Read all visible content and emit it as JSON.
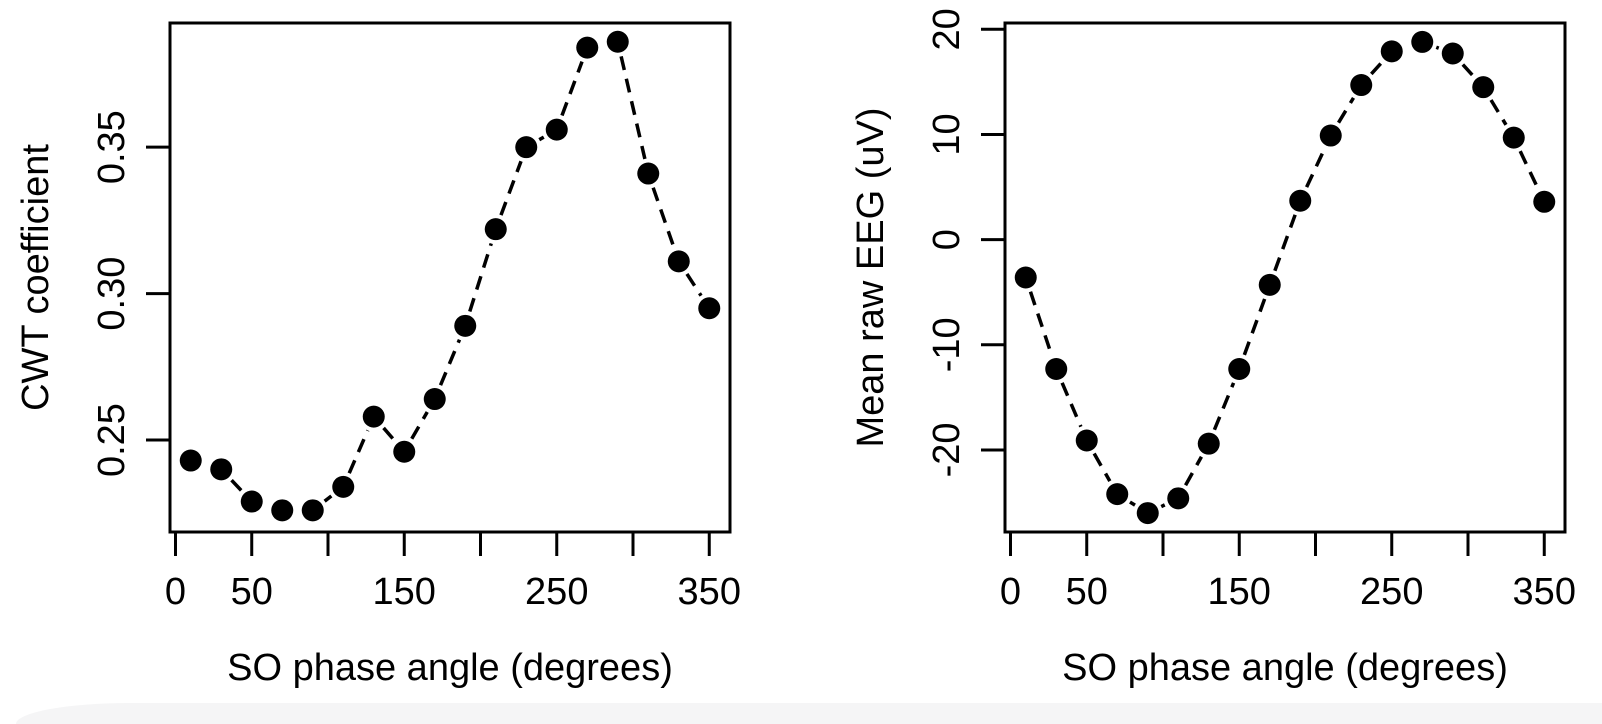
{
  "page": {
    "background_color": "#ffffff",
    "foreground_color": "#000000",
    "bottom_bar_color": "#f5f5f6"
  },
  "chart_data": [
    {
      "type": "scatter",
      "subtype": "points-with-dashed-connecting-lines (R type='b', lty=2, pch=19)",
      "title": "",
      "xlabel": "SO phase angle (degrees)",
      "ylabel": "CWT coefficient",
      "x": [
        10,
        30,
        50,
        70,
        90,
        110,
        130,
        150,
        170,
        190,
        210,
        230,
        250,
        270,
        290,
        310,
        330,
        350
      ],
      "y": [
        0.243,
        0.24,
        0.229,
        0.226,
        0.226,
        0.234,
        0.258,
        0.246,
        0.264,
        0.289,
        0.322,
        0.35,
        0.356,
        0.384,
        0.386,
        0.341,
        0.311,
        0.295
      ],
      "xlim": [
        -3.6,
        363.6
      ],
      "ylim": [
        0.2186,
        0.3924
      ],
      "x_ticks": {
        "values": [
          0,
          50,
          100,
          150,
          200,
          250,
          300,
          350
        ],
        "labels": [
          "0",
          "50",
          "",
          "150",
          "",
          "250",
          "",
          "350"
        ]
      },
      "y_ticks": {
        "values": [
          0.25,
          0.3,
          0.35
        ],
        "labels": [
          "0.25",
          "0.30",
          "0.35"
        ]
      },
      "grid": false,
      "legend_position": "none",
      "series_color": "#000000"
    },
    {
      "type": "scatter",
      "subtype": "points-with-dashed-connecting-lines (R type='b', lty=2, pch=19)",
      "title": "",
      "xlabel": "SO phase angle (degrees)",
      "ylabel": "Mean raw EEG (uV)",
      "x": [
        10,
        30,
        50,
        70,
        90,
        110,
        130,
        150,
        170,
        190,
        210,
        230,
        250,
        270,
        290,
        310,
        330,
        350
      ],
      "y": [
        -3.6,
        -12.3,
        -19.1,
        -24.2,
        -26.0,
        -24.6,
        -19.4,
        -12.3,
        -4.3,
        3.7,
        9.9,
        14.7,
        17.9,
        18.8,
        17.7,
        14.5,
        9.7,
        3.6
      ],
      "xlim": [
        -3.6,
        363.6
      ],
      "ylim": [
        -27.8,
        20.6
      ],
      "x_ticks": {
        "values": [
          0,
          50,
          100,
          150,
          200,
          250,
          300,
          350
        ],
        "labels": [
          "0",
          "50",
          "",
          "150",
          "",
          "250",
          "",
          "350"
        ]
      },
      "y_ticks": {
        "values": [
          -20,
          -10,
          0,
          10,
          20
        ],
        "labels": [
          "-20",
          "-10",
          "0",
          "10",
          "20"
        ]
      },
      "grid": false,
      "legend_position": "none",
      "series_color": "#000000"
    }
  ]
}
